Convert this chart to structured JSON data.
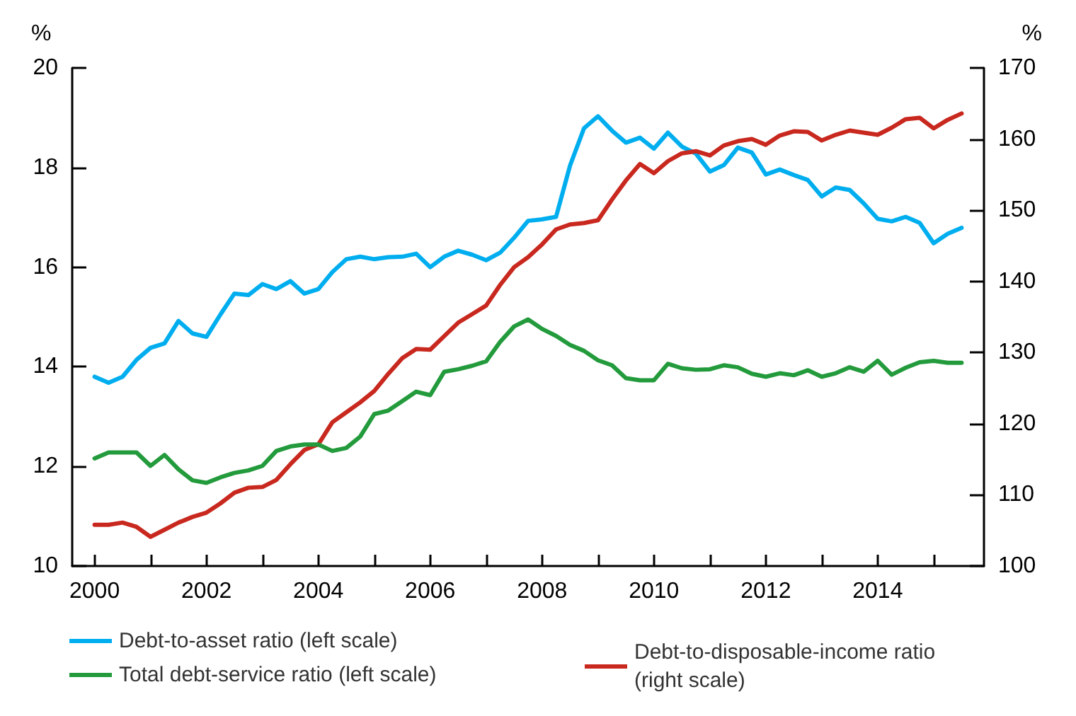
{
  "chart_data": {
    "type": "line",
    "ylabel": "%",
    "y2label": "%",
    "marker": "none",
    "line_style": "solid",
    "grid": false,
    "legend": "bottom",
    "xlim": [
      1999.6,
      2015.9
    ],
    "xticks": [
      2000,
      {
        "value": 2001,
        "label": null
      },
      2002,
      {
        "value": 2003,
        "label": null
      },
      2004,
      {
        "value": 2005,
        "label": null
      },
      2006,
      {
        "value": 2007,
        "label": null
      },
      2008,
      {
        "value": 2009,
        "label": null
      },
      2010,
      {
        "value": 2011,
        "label": null
      },
      2012,
      {
        "value": 2013,
        "label": null
      },
      2014,
      {
        "value": 2015,
        "label": null
      }
    ],
    "ylim": [
      10,
      20
    ],
    "yticks": [
      10,
      12,
      14,
      16,
      18,
      20
    ],
    "y2lim": [
      100,
      170
    ],
    "y2ticks": [
      100,
      110,
      120,
      130,
      140,
      150,
      160,
      170
    ],
    "x": [
      2000,
      2000.25,
      2000.5,
      2000.75,
      2001,
      2001.25,
      2001.5,
      2001.75,
      2002,
      2002.25,
      2002.5,
      2002.75,
      2003,
      2003.25,
      2003.5,
      2003.75,
      2004,
      2004.25,
      2004.5,
      2004.75,
      2005,
      2005.25,
      2005.5,
      2005.75,
      2006,
      2006.25,
      2006.5,
      2006.75,
      2007,
      2007.25,
      2007.5,
      2007.75,
      2008,
      2008.25,
      2008.5,
      2008.75,
      2009,
      2009.25,
      2009.5,
      2009.75,
      2010,
      2010.25,
      2010.5,
      2010.75,
      2011,
      2011.25,
      2011.5,
      2011.75,
      2012,
      2012.25,
      2012.5,
      2012.75,
      2013,
      2013.25,
      2013.5,
      2013.75,
      2014,
      2014.25,
      2014.5,
      2014.75,
      2015,
      2015.25,
      2015.5
    ],
    "series": [
      {
        "name": "Debt-to-asset ratio (left scale)",
        "color": "#00aeef",
        "values": [
          13.8,
          13.68,
          13.8,
          14.14,
          14.38,
          14.47,
          14.92,
          14.67,
          14.6,
          15.05,
          15.47,
          15.44,
          15.66,
          15.56,
          15.72,
          15.47,
          15.56,
          15.9,
          16.16,
          16.21,
          16.16,
          16.2,
          16.21,
          16.27,
          16.0,
          16.21,
          16.33,
          16.25,
          16.14,
          16.29,
          16.59,
          16.93,
          16.96,
          17.01,
          18.04,
          18.79,
          19.03,
          18.74,
          18.5,
          18.6,
          18.38,
          18.7,
          18.42,
          18.28,
          17.92,
          18.05,
          18.4,
          18.3,
          17.86,
          17.96,
          17.85,
          17.75,
          17.42,
          17.6,
          17.55,
          17.28,
          16.97,
          16.92,
          17.01,
          16.89,
          16.48,
          16.67,
          16.79
        ]
      },
      {
        "name": "Debt-to-disposable-income ratio (right scale)",
        "color": "#c8281e",
        "axis": "y2",
        "values": [
          105.8,
          105.8,
          106.1,
          105.5,
          104.1,
          105.1,
          106.1,
          106.9,
          107.5,
          108.8,
          110.3,
          111.0,
          111.1,
          112.1,
          114.3,
          116.3,
          117.1,
          120.2,
          121.6,
          123.0,
          124.6,
          127.0,
          129.2,
          130.5,
          130.4,
          132.3,
          134.2,
          135.4,
          136.6,
          139.5,
          142.0,
          143.4,
          145.2,
          147.3,
          148.0,
          148.2,
          148.6,
          151.5,
          154.2,
          156.5,
          155.2,
          156.9,
          158.0,
          158.3,
          157.7,
          159.1,
          159.7,
          160.0,
          159.2,
          160.5,
          161.1,
          161.0,
          159.8,
          160.6,
          161.2,
          160.9,
          160.6,
          161.6,
          162.8,
          163.0,
          161.5,
          162.7,
          163.6
        ]
      },
      {
        "name": "Total debt-service ratio (left scale)",
        "color": "#239b3c",
        "values": [
          12.16,
          12.28,
          12.28,
          12.28,
          12.01,
          12.23,
          11.94,
          11.72,
          11.67,
          11.78,
          11.87,
          11.92,
          12.01,
          12.31,
          12.4,
          12.44,
          12.44,
          12.31,
          12.37,
          12.6,
          13.05,
          13.12,
          13.31,
          13.5,
          13.43,
          13.9,
          13.95,
          14.02,
          14.11,
          14.5,
          14.81,
          14.95,
          14.76,
          14.62,
          14.44,
          14.32,
          14.13,
          14.03,
          13.77,
          13.73,
          13.73,
          14.06,
          13.97,
          13.94,
          13.95,
          14.03,
          13.99,
          13.86,
          13.8,
          13.87,
          13.83,
          13.93,
          13.8,
          13.87,
          13.99,
          13.9,
          14.12,
          13.84,
          13.98,
          14.09,
          14.12,
          14.08,
          14.08
        ]
      }
    ]
  }
}
